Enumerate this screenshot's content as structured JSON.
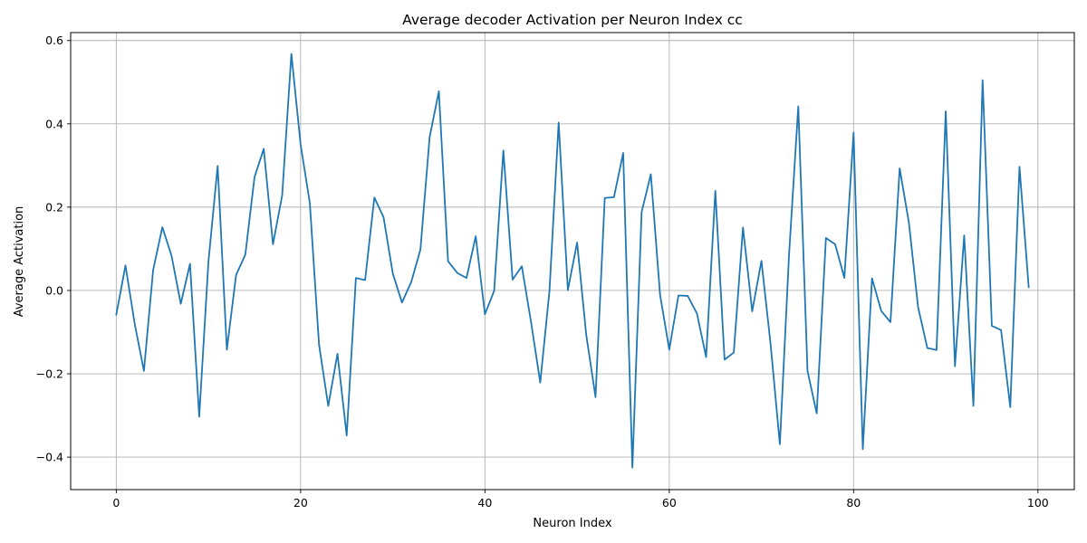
{
  "chart_data": {
    "type": "line",
    "title": "Average decoder Activation per Neuron Index cc",
    "xlabel": "Neuron Index",
    "ylabel": "Average Activation",
    "xlim": [
      -4.95,
      103.95
    ],
    "ylim": [
      -0.478,
      0.619
    ],
    "xticks": [
      0,
      20,
      40,
      60,
      80,
      100
    ],
    "xtick_labels": [
      "0",
      "20",
      "40",
      "60",
      "80",
      "100"
    ],
    "yticks": [
      -0.4,
      -0.2,
      0.0,
      0.2,
      0.4,
      0.6
    ],
    "ytick_labels": [
      "−0.4",
      "−0.2",
      "0.0",
      "0.2",
      "0.4",
      "0.6"
    ],
    "grid": true,
    "line_color": "#1f77b4",
    "series": [
      {
        "x": [
          0,
          1,
          2,
          3,
          4,
          5,
          6,
          7,
          8,
          9,
          10,
          11,
          12,
          13,
          14,
          15,
          16,
          17,
          18,
          19,
          20,
          21,
          22,
          23,
          24,
          25,
          26,
          27,
          28,
          29,
          30,
          31,
          32,
          33,
          34,
          35,
          36,
          37,
          38,
          39,
          40,
          41,
          42,
          43,
          44,
          45,
          46,
          47,
          48,
          49,
          50,
          51,
          52,
          53,
          54,
          55,
          56,
          57,
          58,
          59,
          60,
          61,
          62,
          63,
          64,
          65,
          66,
          67,
          68,
          69,
          70,
          71,
          72,
          73,
          74,
          75,
          76,
          77,
          78,
          79,
          80,
          81,
          82,
          83,
          84,
          85,
          86,
          87,
          88,
          89,
          90,
          91,
          92,
          93,
          94,
          95,
          96,
          97,
          98,
          99
        ],
        "values": [
          -0.058,
          0.06,
          -0.08,
          -0.193,
          0.049,
          0.152,
          0.083,
          -0.032,
          0.064,
          -0.303,
          0.069,
          0.299,
          -0.142,
          0.037,
          0.086,
          0.272,
          0.34,
          0.111,
          0.228,
          0.568,
          0.35,
          0.21,
          -0.13,
          -0.277,
          -0.152,
          -0.348,
          0.03,
          0.025,
          0.223,
          0.176,
          0.041,
          -0.029,
          0.02,
          0.098,
          0.368,
          0.478,
          0.07,
          0.042,
          0.03,
          0.13,
          -0.057,
          -0.001,
          0.336,
          0.026,
          0.058,
          -0.075,
          -0.221,
          -0.002,
          0.403,
          0.001,
          0.115,
          -0.108,
          -0.256,
          0.222,
          0.224,
          0.33,
          -0.425,
          0.188,
          0.279,
          -0.01,
          -0.142,
          -0.012,
          -0.013,
          -0.055,
          -0.16,
          0.239,
          -0.166,
          -0.149,
          0.151,
          -0.05,
          0.071,
          -0.13,
          -0.369,
          0.087,
          0.442,
          -0.193,
          -0.295,
          0.126,
          0.111,
          0.03,
          0.379,
          -0.381,
          0.029,
          -0.049,
          -0.076,
          0.293,
          0.163,
          -0.04,
          -0.138,
          -0.143,
          0.43,
          -0.182,
          0.132,
          -0.277,
          0.505,
          -0.085,
          -0.095,
          -0.28,
          0.297,
          0.008
        ]
      }
    ]
  }
}
